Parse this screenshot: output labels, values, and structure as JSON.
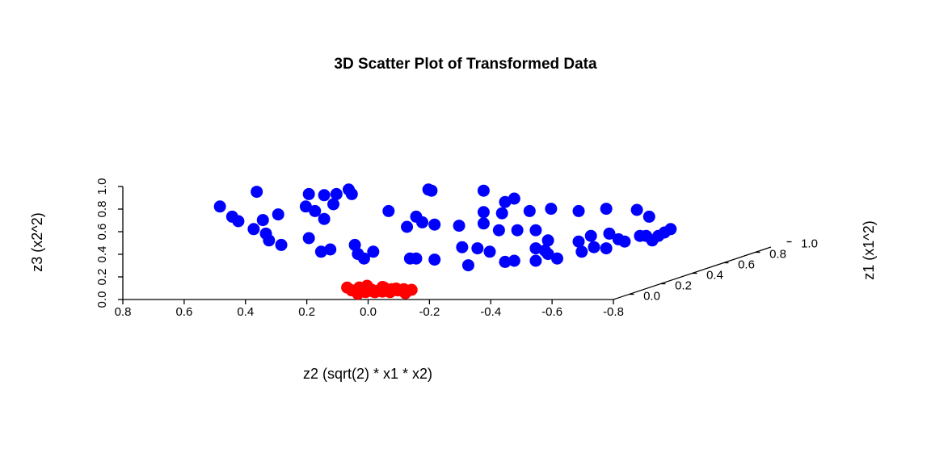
{
  "chart_data": {
    "type": "scatter3d",
    "title": "3D Scatter Plot of Transformed Data",
    "xlabel": "z2 (sqrt(2) * x1 * x2)",
    "ylabel": "z1 (x1^2)",
    "zlabel": "z3 (x2^2)",
    "xlim": [
      0.8,
      -0.8
    ],
    "xticks": [
      0.8,
      0.6,
      0.4,
      0.2,
      {
        "value": 0,
        "label": "0.0"
      },
      -0.2,
      -0.4,
      -0.6,
      -0.8
    ],
    "ylim": [
      -0.1,
      0.9
    ],
    "yticks": [
      {
        "value": 0,
        "label": "0.0"
      },
      0.2,
      0.4,
      0.6,
      0.8,
      {
        "value": 1,
        "label": "1.0"
      }
    ],
    "zlim": [
      0,
      1
    ],
    "zticks": [
      {
        "value": 0,
        "label": "0.0"
      },
      0.2,
      0.4,
      0.6,
      0.8,
      {
        "value": 1,
        "label": "1.0"
      }
    ],
    "series": [
      {
        "color": "#0000ff",
        "x": [
          0.73,
          0.69,
          0.67,
          0.61,
          0.59,
          0.62,
          0.58,
          0.54,
          0.57,
          0.53,
          0.44,
          0.45,
          0.42,
          0.39,
          0.35,
          0.31,
          0.3,
          0.36,
          0.39,
          0.44,
          0.4,
          0.37,
          0.29,
          0.28,
          0.26,
          0.23,
          0.18,
          0.12,
          0.09,
          0.07,
          0.03,
          0.05,
          0.04,
          0.11,
          0.09,
          0.03,
          -0.05,
          -0.06,
          -0.08,
          -0.11,
          -0.13,
          -0.13,
          -0.13,
          -0.15,
          -0.18,
          -0.19,
          -0.2,
          -0.23,
          -0.24,
          -0.2,
          -0.23,
          -0.28,
          -0.3,
          -0.3,
          -0.34,
          -0.35,
          -0.3,
          -0.33,
          -0.34,
          -0.37,
          -0.44,
          -0.44,
          -0.45,
          -0.48,
          -0.49,
          -0.53,
          -0.53,
          -0.54,
          -0.57,
          -0.59,
          -0.63,
          -0.64,
          -0.66,
          -0.68,
          -0.67,
          -0.7,
          -0.72,
          -0.74
        ],
        "y": [
          0.38,
          0.38,
          0.38,
          0.38,
          0.38,
          0.38,
          0.38,
          0.38,
          0.38,
          0.38,
          0.38,
          0.38,
          0.38,
          0.38,
          0.38,
          0.38,
          0.38,
          0.38,
          0.38,
          0.38,
          0.38,
          0.38,
          0.38,
          0.38,
          0.38,
          0.38,
          0.38,
          0.38,
          0.38,
          0.38,
          0.38,
          0.38,
          0.38,
          0.38,
          0.38,
          0.38,
          0.38,
          0.38,
          0.38,
          0.38,
          0.38,
          0.38,
          0.38,
          0.38,
          0.38,
          0.38,
          0.38,
          0.38,
          0.38,
          0.38,
          0.38,
          0.38,
          0.38,
          0.38,
          0.38,
          0.38,
          0.38,
          0.38,
          0.38,
          0.38,
          0.38,
          0.38,
          0.38,
          0.38,
          0.38,
          0.38,
          0.38,
          0.38,
          0.38,
          0.38,
          0.38,
          0.38,
          0.38,
          0.38,
          0.38,
          0.38,
          0.38,
          0.38
        ],
        "z": [
          0.6,
          0.51,
          0.47,
          0.73,
          0.48,
          0.4,
          0.36,
          0.53,
          0.3,
          0.26,
          0.71,
          0.6,
          0.56,
          0.7,
          0.71,
          0.75,
          0.71,
          0.62,
          0.49,
          0.32,
          0.2,
          0.22,
          0.26,
          0.18,
          0.14,
          0.2,
          0.56,
          0.42,
          0.51,
          0.46,
          0.44,
          0.75,
          0.74,
          0.14,
          0.14,
          0.13,
          0.43,
          0.24,
          0.08,
          0.23,
          0.74,
          0.55,
          0.45,
          0.2,
          0.39,
          0.54,
          0.64,
          0.67,
          0.39,
          0.11,
          0.12,
          0.56,
          0.12,
          0.39,
          0.3,
          0.58,
          0.23,
          0.21,
          0.18,
          0.14,
          0.56,
          0.29,
          0.2,
          0.34,
          0.24,
          0.23,
          0.58,
          0.36,
          0.31,
          0.29,
          0.57,
          0.34,
          0.34,
          0.3,
          0.51,
          0.34,
          0.37,
          0.4
        ]
      },
      {
        "color": "#ff0000",
        "x": [
          0.13,
          0.11,
          0.1,
          0.08,
          0.07,
          0.06,
          0.05,
          0.04,
          0.03,
          0.02,
          0.01,
          0,
          -0.01,
          -0.02,
          -0.03,
          -0.04,
          -0.05,
          -0.06,
          -0.07,
          -0.08,
          0.09,
          0.05,
          0.02,
          -0.01
        ],
        "y": [
          0.02,
          0.01,
          0.03,
          0,
          0.02,
          0.01,
          0.04,
          0,
          0.02,
          0.03,
          0.01,
          0,
          0.02,
          0.01,
          0.03,
          0,
          0.02,
          0.01,
          0,
          0.02,
          0.01,
          0.02,
          0.03,
          0
        ],
        "z": [
          0.05,
          0.03,
          0.02,
          0.06,
          0.01,
          0.07,
          0,
          0.04,
          0.02,
          0.05,
          0.03,
          0.06,
          0.01,
          0.04,
          0.02,
          0.05,
          0.03,
          0.04,
          0.01,
          0.03,
          0,
          0.02,
          0.01,
          0.03
        ]
      }
    ]
  }
}
